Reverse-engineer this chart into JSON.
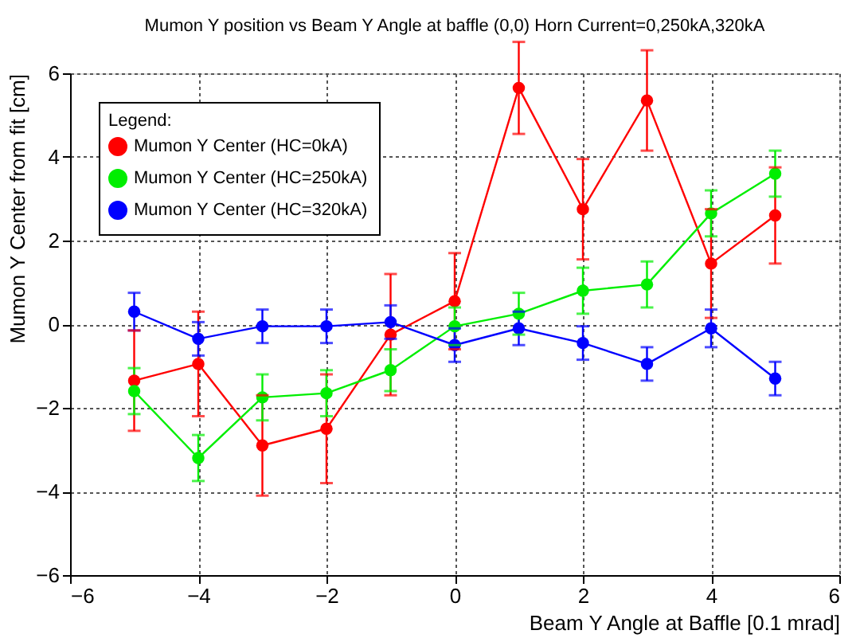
{
  "chart_data": {
    "type": "line",
    "title": "Mumon Y position vs Beam Y Angle at baffle (0,0) Horn Current=0,250kA,320kA",
    "xlabel": "Beam Y Angle at Baffle [0.1 mrad]",
    "ylabel": "Mumon Y Center from fit [cm]",
    "legend_title": "Legend:",
    "x": [
      -5,
      -4,
      -3,
      -2,
      -1,
      0,
      1,
      2,
      3,
      4,
      5
    ],
    "series": [
      {
        "name": "Mumon Y Center (HC=0kA)",
        "color": "#ff0000",
        "values": [
          -1.35,
          -0.95,
          -2.9,
          -2.5,
          -0.25,
          0.55,
          5.65,
          2.75,
          5.35,
          1.45,
          2.6
        ],
        "errors": [
          1.2,
          1.25,
          1.2,
          1.3,
          1.45,
          1.15,
          1.1,
          1.2,
          1.2,
          1.3,
          1.15
        ]
      },
      {
        "name": "Mumon Y Center (HC=250kA)",
        "color": "#00ee00",
        "values": [
          -1.6,
          -3.2,
          -1.75,
          -1.65,
          -1.1,
          -0.05,
          0.25,
          0.8,
          0.95,
          2.65,
          3.6
        ],
        "errors": [
          0.55,
          0.55,
          0.55,
          0.55,
          0.5,
          0.45,
          0.5,
          0.55,
          0.55,
          0.55,
          0.55
        ]
      },
      {
        "name": "Mumon Y Center (HC=320kA)",
        "color": "#0000ff",
        "values": [
          0.3,
          -0.35,
          -0.05,
          -0.05,
          0.05,
          -0.5,
          -0.1,
          -0.45,
          -0.95,
          -0.1,
          -1.3
        ],
        "errors": [
          0.45,
          0.4,
          0.4,
          0.4,
          0.4,
          0.4,
          0.4,
          0.4,
          0.4,
          0.45,
          0.4
        ]
      }
    ],
    "xlim": [
      -6,
      6
    ],
    "xticks": [
      -6,
      -4,
      -2,
      0,
      2,
      4,
      6
    ],
    "ylim": [
      -6,
      6
    ],
    "yticks": [
      -6,
      -4,
      -2,
      0,
      2,
      4,
      6
    ],
    "grid": true,
    "legend": "top left",
    "marker": "circle",
    "line_style": "solid"
  }
}
